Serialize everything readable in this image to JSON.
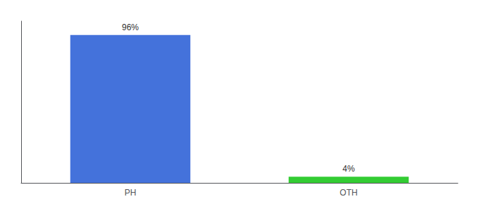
{
  "chart_data": {
    "type": "bar",
    "categories": [
      "PH",
      "OTH"
    ],
    "values": [
      96,
      4
    ],
    "value_labels": [
      "96%",
      "4%"
    ],
    "colors": [
      "#4472db",
      "#33cc33"
    ],
    "ylim": [
      0,
      105
    ],
    "grid": false,
    "data_labels": true,
    "tick_labels": "x"
  }
}
